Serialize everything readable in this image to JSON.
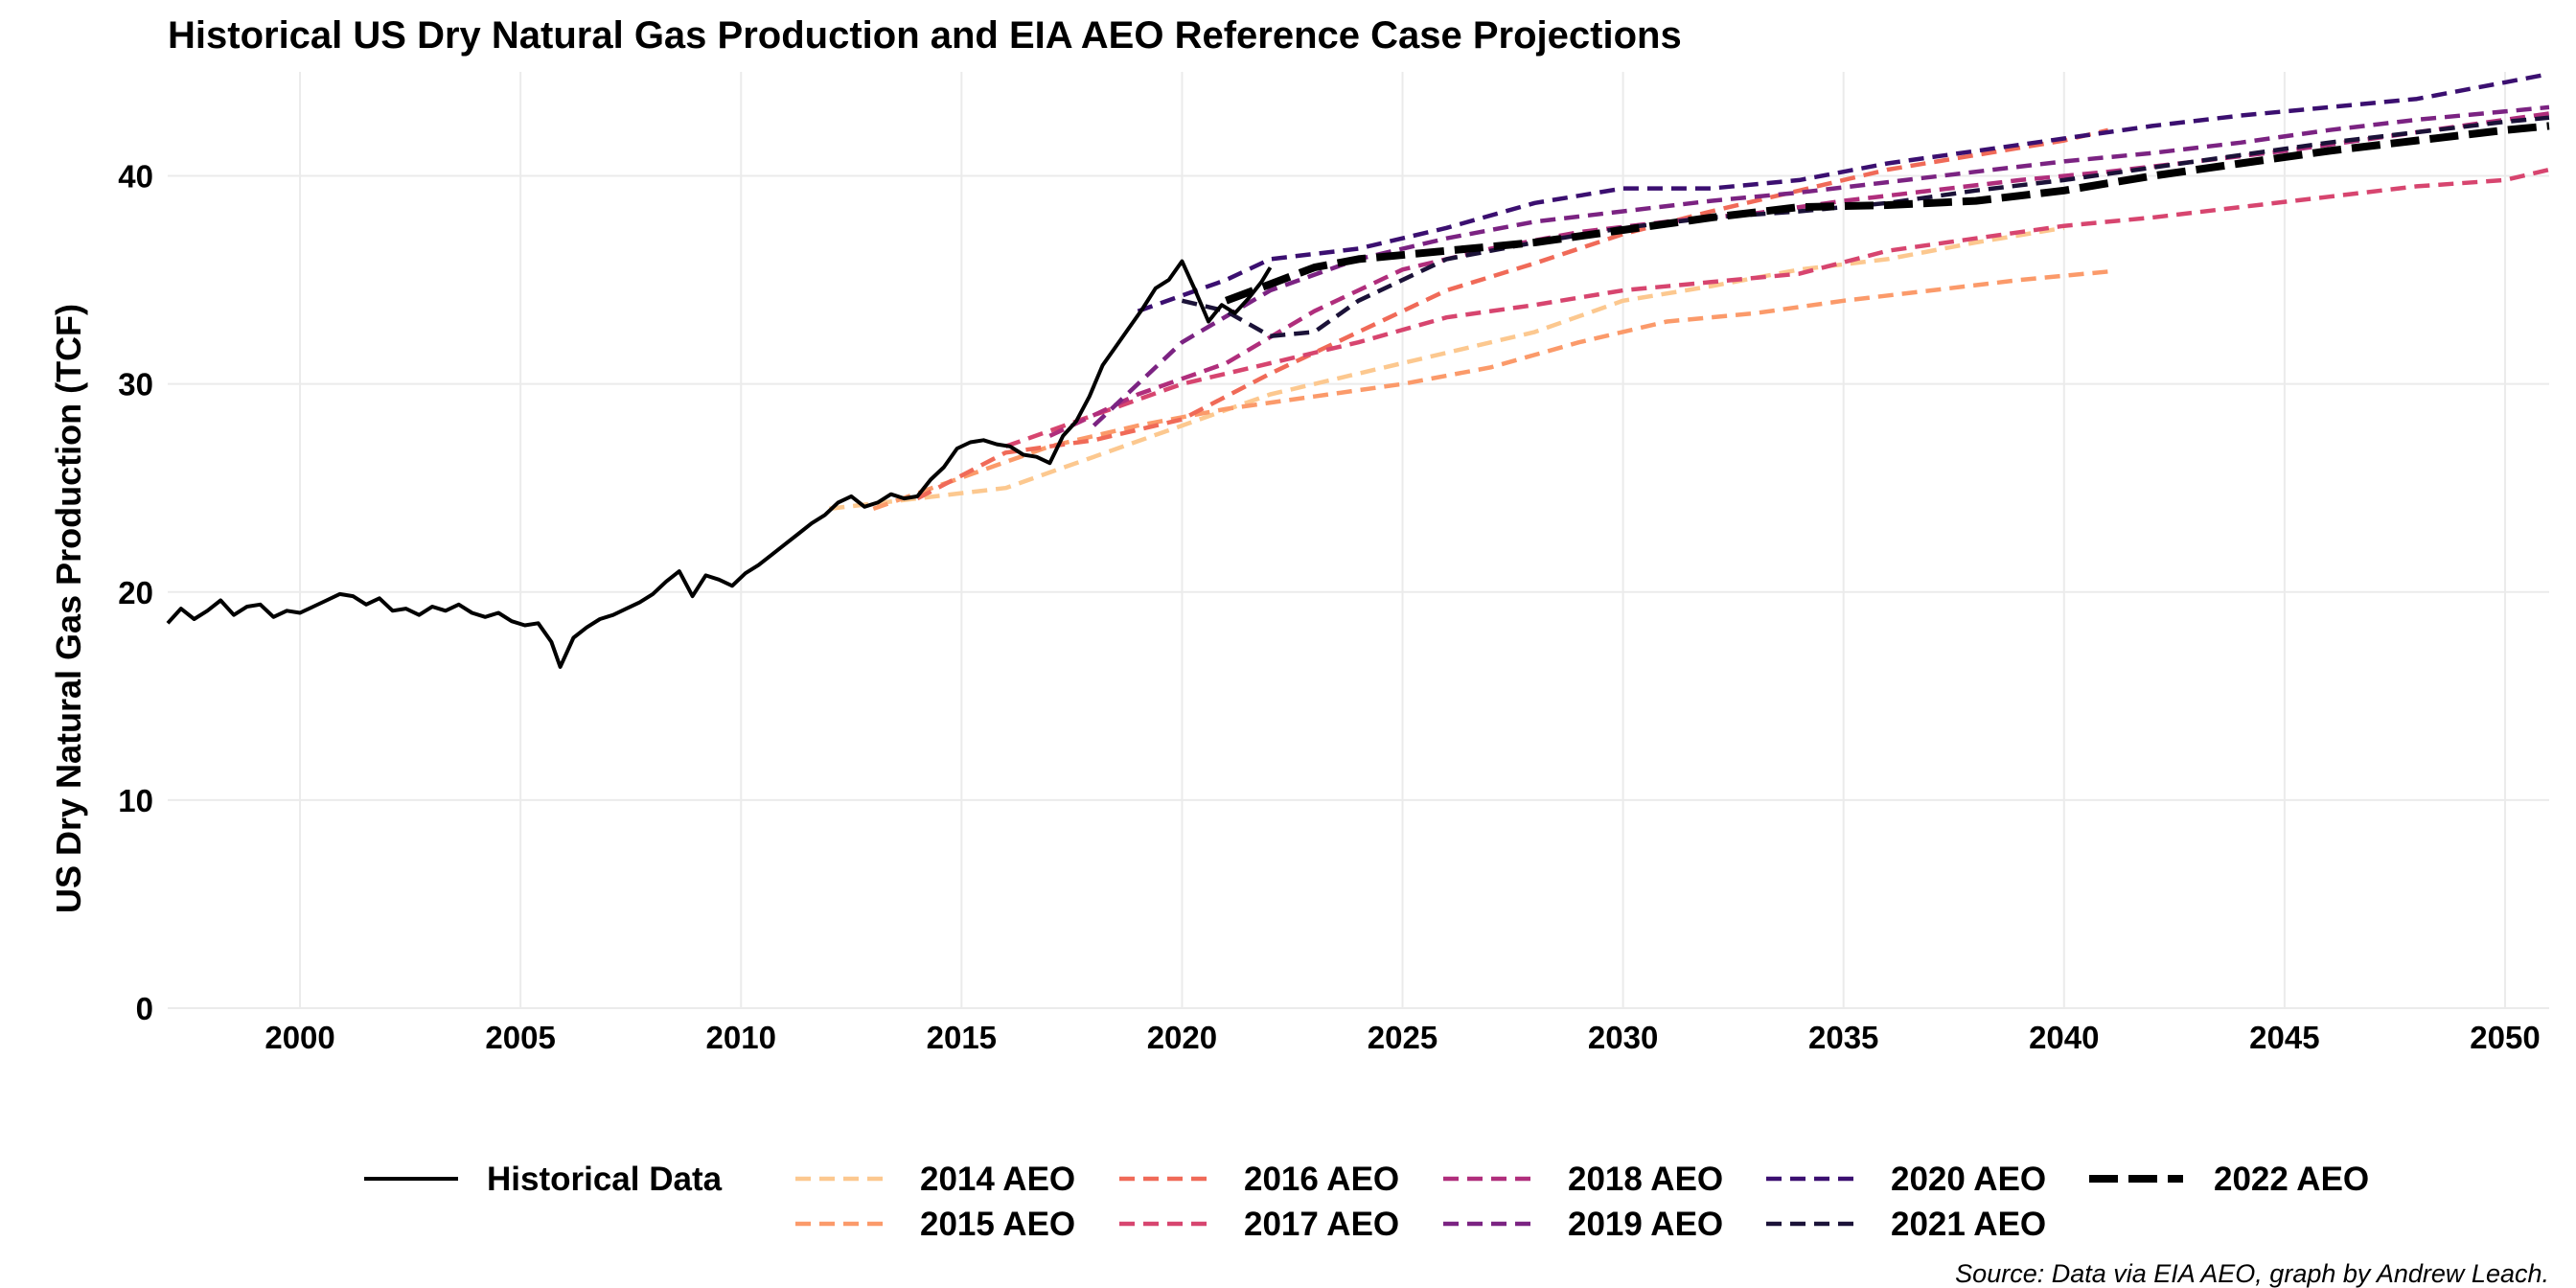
{
  "chart_data": {
    "type": "line",
    "title": "Historical US Dry Natural Gas Production and EIA AEO Reference Case Projections",
    "ylabel": "US Dry Natural Gas Production (TCF)",
    "xlabel": "",
    "caption": "Source: Data via EIA AEO, graph by Andrew Leach.",
    "xlim": [
      1997,
      2051
    ],
    "ylim": [
      0,
      45
    ],
    "x_ticks": [
      2000,
      2005,
      2010,
      2015,
      2020,
      2025,
      2030,
      2035,
      2040,
      2045,
      2050
    ],
    "y_ticks": [
      0,
      10,
      20,
      30,
      40
    ],
    "grid": true,
    "legend_position": "bottom",
    "series": [
      {
        "name": "Historical Data",
        "color": "#000000",
        "dash": "solid",
        "x": [
          1997.0,
          1997.3,
          1997.6,
          1997.9,
          1998.2,
          1998.5,
          1998.8,
          1999.1,
          1999.4,
          1999.7,
          2000.0,
          2000.3,
          2000.6,
          2000.9,
          2001.2,
          2001.5,
          2001.8,
          2002.1,
          2002.4,
          2002.7,
          2003.0,
          2003.3,
          2003.6,
          2003.9,
          2004.2,
          2004.5,
          2004.8,
          2005.1,
          2005.4,
          2005.7,
          2005.9,
          2006.2,
          2006.5,
          2006.8,
          2007.1,
          2007.4,
          2007.7,
          2008.0,
          2008.3,
          2008.6,
          2008.9,
          2009.2,
          2009.5,
          2009.8,
          2010.1,
          2010.4,
          2010.7,
          2011.0,
          2011.3,
          2011.6,
          2011.9,
          2012.2,
          2012.5,
          2012.8,
          2013.1,
          2013.4,
          2013.7,
          2014.0,
          2014.3,
          2014.6,
          2014.9,
          2015.2,
          2015.5,
          2015.8,
          2016.1,
          2016.4,
          2016.7,
          2017.0,
          2017.3,
          2017.6,
          2017.9,
          2018.2,
          2018.5,
          2018.8,
          2019.1,
          2019.4,
          2019.7,
          2020.0,
          2020.3,
          2020.6,
          2020.9,
          2021.2,
          2021.5,
          2021.8,
          2022.0
        ],
        "values": [
          18.5,
          19.2,
          18.7,
          19.1,
          19.6,
          18.9,
          19.3,
          19.4,
          18.8,
          19.1,
          19.0,
          19.3,
          19.6,
          19.9,
          19.8,
          19.4,
          19.7,
          19.1,
          19.2,
          18.9,
          19.3,
          19.1,
          19.4,
          19.0,
          18.8,
          19.0,
          18.6,
          18.4,
          18.5,
          17.6,
          16.4,
          17.8,
          18.3,
          18.7,
          18.9,
          19.2,
          19.5,
          19.9,
          20.5,
          21.0,
          19.8,
          20.8,
          20.6,
          20.3,
          20.9,
          21.3,
          21.8,
          22.3,
          22.8,
          23.3,
          23.7,
          24.3,
          24.6,
          24.1,
          24.3,
          24.7,
          24.5,
          24.6,
          25.4,
          26.0,
          26.9,
          27.2,
          27.3,
          27.1,
          27.0,
          26.6,
          26.5,
          26.2,
          27.5,
          28.2,
          29.4,
          30.9,
          31.8,
          32.7,
          33.6,
          34.6,
          35.0,
          35.9,
          34.5,
          33.0,
          33.8,
          33.4,
          34.1,
          34.9,
          35.6
        ]
      },
      {
        "name": "2014 AEO",
        "color": "#FCC88F",
        "dash": "dashed",
        "x": [
          2012,
          2014,
          2016,
          2018,
          2020,
          2022,
          2024,
          2026,
          2028,
          2030,
          2032,
          2034,
          2036,
          2038,
          2040
        ],
        "values": [
          24.0,
          24.5,
          25.0,
          26.5,
          28.0,
          29.5,
          30.5,
          31.5,
          32.5,
          34.0,
          34.7,
          35.5,
          36.0,
          36.8,
          37.5
        ]
      },
      {
        "name": "2015 AEO",
        "color": "#FB9A6A",
        "dash": "dashed",
        "x": [
          2013,
          2015,
          2017,
          2019,
          2021,
          2023,
          2025,
          2027,
          2029,
          2031,
          2033,
          2035,
          2037,
          2039,
          2041
        ],
        "values": [
          24.0,
          25.5,
          27.0,
          28.0,
          28.8,
          29.4,
          30.0,
          30.8,
          32.0,
          33.0,
          33.4,
          34.0,
          34.5,
          35.0,
          35.4
        ]
      },
      {
        "name": "2016 AEO",
        "color": "#F06A58",
        "dash": "dashed",
        "x": [
          2014,
          2016,
          2018,
          2020,
          2022,
          2024,
          2026,
          2028,
          2030,
          2032,
          2034,
          2036,
          2038,
          2040,
          2041
        ],
        "values": [
          24.5,
          26.7,
          27.3,
          28.3,
          30.5,
          32.5,
          34.5,
          35.8,
          37.2,
          38.3,
          39.3,
          40.3,
          41.0,
          41.7,
          42.2
        ]
      },
      {
        "name": "2017 AEO",
        "color": "#D7456F",
        "dash": "dashed",
        "x": [
          2016,
          2018,
          2020,
          2022,
          2024,
          2026,
          2028,
          2030,
          2032,
          2034,
          2036,
          2038,
          2040,
          2042,
          2044,
          2046,
          2048,
          2050,
          2051
        ],
        "values": [
          27.0,
          28.5,
          30.0,
          31.0,
          32.0,
          33.2,
          33.8,
          34.5,
          34.9,
          35.3,
          36.4,
          37.0,
          37.6,
          38.0,
          38.5,
          39.0,
          39.5,
          39.8,
          40.3
        ]
      },
      {
        "name": "2018 AEO",
        "color": "#B02E7C",
        "dash": "dashed",
        "x": [
          2017,
          2019,
          2021,
          2023,
          2025,
          2027,
          2029,
          2031,
          2033,
          2035,
          2037,
          2039,
          2041,
          2043,
          2045,
          2047,
          2049,
          2051
        ],
        "values": [
          27.5,
          29.5,
          31.0,
          33.5,
          35.5,
          36.5,
          37.3,
          37.8,
          38.2,
          38.8,
          39.3,
          39.8,
          40.2,
          40.7,
          41.2,
          41.8,
          42.4,
          43.0
        ]
      },
      {
        "name": "2019 AEO",
        "color": "#7B2382",
        "dash": "dashed",
        "x": [
          2018,
          2020,
          2022,
          2024,
          2026,
          2028,
          2030,
          2032,
          2034,
          2036,
          2038,
          2040,
          2042,
          2044,
          2046,
          2048,
          2050,
          2051
        ],
        "values": [
          28.0,
          32.0,
          34.5,
          36.0,
          37.0,
          37.8,
          38.3,
          38.8,
          39.2,
          39.7,
          40.2,
          40.7,
          41.1,
          41.6,
          42.2,
          42.7,
          43.1,
          43.3
        ]
      },
      {
        "name": "2020 AEO",
        "color": "#3B0F70",
        "dash": "dashed",
        "x": [
          2019,
          2021,
          2022,
          2024,
          2026,
          2028,
          2030,
          2032,
          2034,
          2036,
          2038,
          2040,
          2042,
          2044,
          2046,
          2048,
          2050,
          2051
        ],
        "values": [
          33.5,
          35.0,
          36.0,
          36.5,
          37.5,
          38.7,
          39.4,
          39.4,
          39.8,
          40.6,
          41.2,
          41.8,
          42.4,
          42.9,
          43.3,
          43.7,
          44.5,
          44.9
        ]
      },
      {
        "name": "2021 AEO",
        "color": "#1B1238",
        "dash": "dashed",
        "x": [
          2020,
          2021,
          2022,
          2023,
          2024,
          2026,
          2028,
          2030,
          2032,
          2034,
          2036,
          2038,
          2040,
          2042,
          2044,
          2046,
          2048,
          2050,
          2051
        ],
        "values": [
          34.0,
          33.5,
          32.3,
          32.5,
          34.0,
          36.0,
          36.8,
          37.5,
          38.0,
          38.3,
          38.7,
          39.3,
          39.8,
          40.4,
          41.0,
          41.6,
          42.1,
          42.6,
          42.8
        ]
      },
      {
        "name": "2022 AEO",
        "color": "#000000",
        "dash": "longdash",
        "x": [
          2021,
          2022,
          2023,
          2024,
          2026,
          2028,
          2030,
          2032,
          2034,
          2036,
          2038,
          2040,
          2042,
          2044,
          2046,
          2048,
          2050,
          2051
        ],
        "values": [
          34.0,
          34.8,
          35.6,
          36.0,
          36.4,
          36.8,
          37.4,
          38.0,
          38.5,
          38.6,
          38.8,
          39.3,
          40.0,
          40.6,
          41.2,
          41.7,
          42.2,
          42.4
        ]
      }
    ]
  }
}
